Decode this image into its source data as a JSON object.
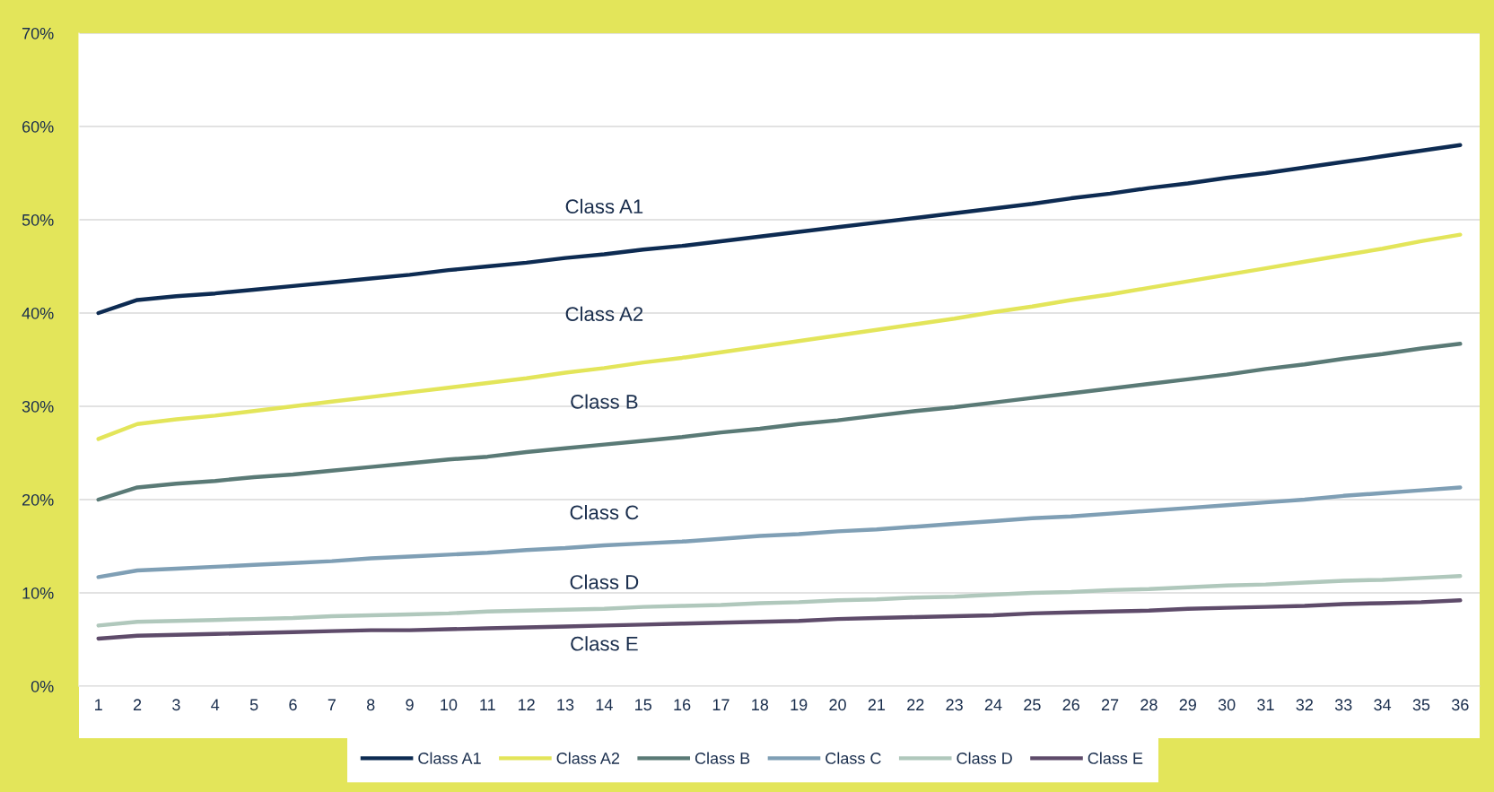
{
  "chart_data": {
    "type": "line",
    "categories": [
      "1",
      "2",
      "3",
      "4",
      "5",
      "6",
      "7",
      "8",
      "9",
      "10",
      "11",
      "12",
      "13",
      "14",
      "15",
      "16",
      "17",
      "18",
      "19",
      "20",
      "21",
      "22",
      "23",
      "24",
      "25",
      "26",
      "27",
      "28",
      "29",
      "30",
      "31",
      "32",
      "33",
      "34",
      "35",
      "36"
    ],
    "series": [
      {
        "name": "Class A1",
        "color": "#0d2b52",
        "values": [
          40,
          41.4,
          41.8,
          42.1,
          42.5,
          42.9,
          43.3,
          43.7,
          44.1,
          44.6,
          45.0,
          45.4,
          45.9,
          46.3,
          46.8,
          47.2,
          47.7,
          48.2,
          48.7,
          49.2,
          49.7,
          50.2,
          50.7,
          51.2,
          51.7,
          52.3,
          52.8,
          53.4,
          53.9,
          54.5,
          55.0,
          55.6,
          56.2,
          56.8,
          57.4,
          58.0
        ]
      },
      {
        "name": "Class A2",
        "color": "#e3e55a",
        "values": [
          26.5,
          28.1,
          28.6,
          29.0,
          29.5,
          30.0,
          30.5,
          31.0,
          31.5,
          32.0,
          32.5,
          33.0,
          33.6,
          34.1,
          34.7,
          35.2,
          35.8,
          36.4,
          37.0,
          37.6,
          38.2,
          38.8,
          39.4,
          40.1,
          40.7,
          41.4,
          42.0,
          42.7,
          43.4,
          44.1,
          44.8,
          45.5,
          46.2,
          46.9,
          47.7,
          48.4
        ]
      },
      {
        "name": "Class B",
        "color": "#5a7a76",
        "values": [
          20,
          21.3,
          21.7,
          22.0,
          22.4,
          22.7,
          23.1,
          23.5,
          23.9,
          24.3,
          24.6,
          25.1,
          25.5,
          25.9,
          26.3,
          26.7,
          27.2,
          27.6,
          28.1,
          28.5,
          29.0,
          29.5,
          29.9,
          30.4,
          30.9,
          31.4,
          31.9,
          32.4,
          32.9,
          33.4,
          34.0,
          34.5,
          35.1,
          35.6,
          36.2,
          36.7
        ]
      },
      {
        "name": "Class C",
        "color": "#7f9fb5",
        "values": [
          11.7,
          12.4,
          12.6,
          12.8,
          13.0,
          13.2,
          13.4,
          13.7,
          13.9,
          14.1,
          14.3,
          14.6,
          14.8,
          15.1,
          15.3,
          15.5,
          15.8,
          16.1,
          16.3,
          16.6,
          16.8,
          17.1,
          17.4,
          17.7,
          18.0,
          18.2,
          18.5,
          18.8,
          19.1,
          19.4,
          19.7,
          20.0,
          20.4,
          20.7,
          21.0,
          21.3
        ]
      },
      {
        "name": "Class D",
        "color": "#b0c8bc",
        "values": [
          6.5,
          6.9,
          7.0,
          7.1,
          7.2,
          7.3,
          7.5,
          7.6,
          7.7,
          7.8,
          8.0,
          8.1,
          8.2,
          8.3,
          8.5,
          8.6,
          8.7,
          8.9,
          9.0,
          9.2,
          9.3,
          9.5,
          9.6,
          9.8,
          10.0,
          10.1,
          10.3,
          10.4,
          10.6,
          10.8,
          10.9,
          11.1,
          11.3,
          11.4,
          11.6,
          11.8
        ]
      },
      {
        "name": "Class E",
        "color": "#5e4b6a",
        "values": [
          5.1,
          5.4,
          5.5,
          5.6,
          5.7,
          5.8,
          5.9,
          6.0,
          6.0,
          6.1,
          6.2,
          6.3,
          6.4,
          6.5,
          6.6,
          6.7,
          6.8,
          6.9,
          7.0,
          7.2,
          7.3,
          7.4,
          7.5,
          7.6,
          7.8,
          7.9,
          8.0,
          8.1,
          8.3,
          8.4,
          8.5,
          8.6,
          8.8,
          8.9,
          9.0,
          9.2
        ]
      }
    ],
    "annotations": [
      "Class A1",
      "Class A2",
      "Class B",
      "Class C",
      "Class D",
      "Class E"
    ],
    "ylim": [
      0,
      70
    ],
    "yticks": [
      {
        "value": 0,
        "label": "0%"
      },
      {
        "value": 10,
        "label": "10%"
      },
      {
        "value": 20,
        "label": "20%"
      },
      {
        "value": 30,
        "label": "30%"
      },
      {
        "value": 40,
        "label": "40%"
      },
      {
        "value": 50,
        "label": "50%"
      },
      {
        "value": 60,
        "label": "60%"
      },
      {
        "value": 70,
        "label": "70%"
      }
    ],
    "grid": "y",
    "legend": "bottom",
    "marker": "none",
    "line_style": "solid"
  }
}
